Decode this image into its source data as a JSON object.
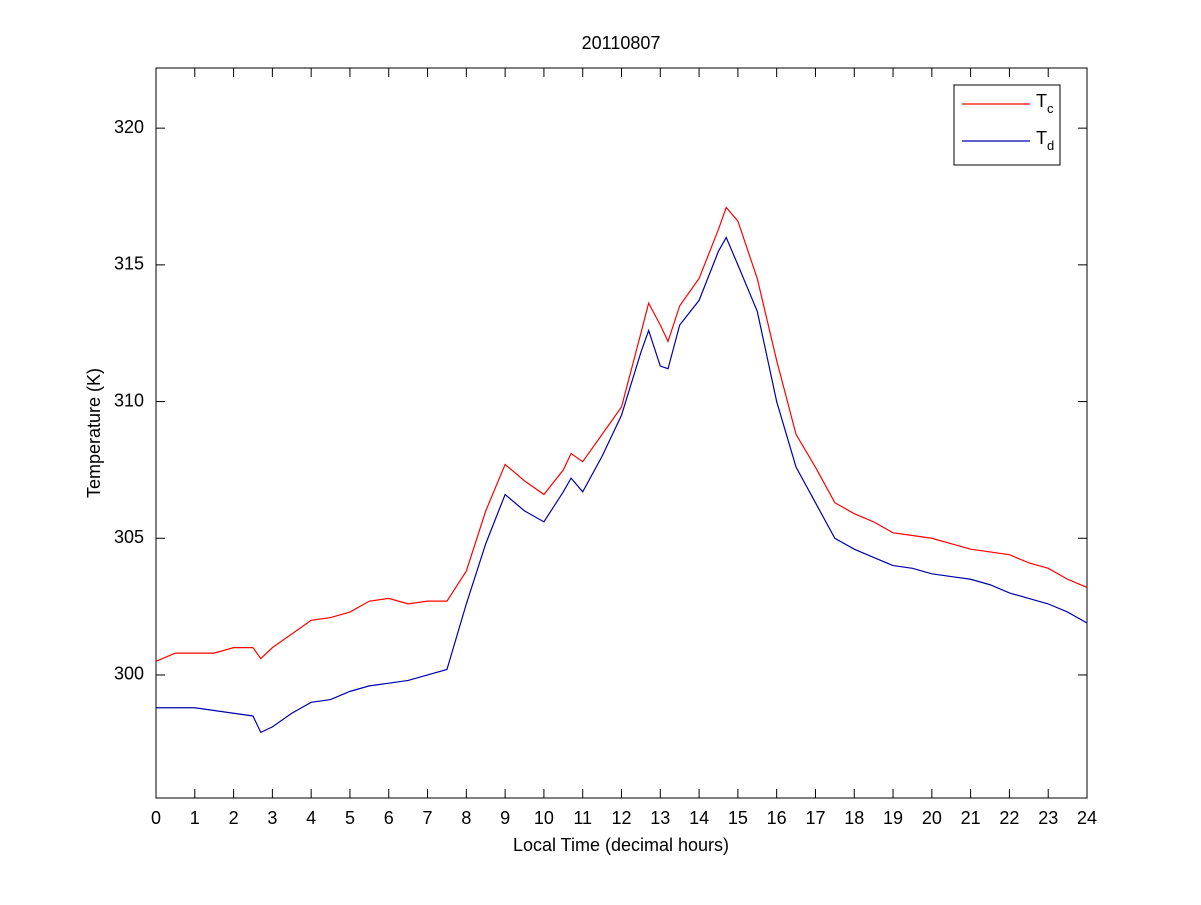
{
  "chart_data": {
    "type": "line",
    "title": "20110807",
    "x_label": "Local Time (decimal hours)",
    "y_label": "Temperature (K)",
    "x": [
      0,
      0.5,
      1,
      1.5,
      2,
      2.5,
      2.7,
      3,
      3.5,
      4,
      4.5,
      5,
      5.5,
      6,
      6.5,
      7,
      7.5,
      8,
      8.5,
      9,
      9.5,
      10,
      10.5,
      10.7,
      11,
      11.5,
      12,
      12.5,
      12.7,
      13,
      13.2,
      13.5,
      14,
      14.5,
      14.7,
      15,
      15.5,
      16,
      16.5,
      17,
      17.5,
      18,
      18.5,
      19,
      19.5,
      20,
      20.5,
      21,
      21.5,
      22,
      22.5,
      23,
      23.5,
      24
    ],
    "series": [
      {
        "name": "Tc",
        "color": "#ff0000",
        "values": [
          300.5,
          300.8,
          300.8,
          300.8,
          301.0,
          301.0,
          300.6,
          301.0,
          301.5,
          302.0,
          302.1,
          302.3,
          302.7,
          302.8,
          302.6,
          302.7,
          302.7,
          303.8,
          306.0,
          307.7,
          307.1,
          306.6,
          307.5,
          308.1,
          307.8,
          308.8,
          309.8,
          312.5,
          313.6,
          312.8,
          312.2,
          313.5,
          314.5,
          316.3,
          317.1,
          316.6,
          314.5,
          311.5,
          308.8,
          307.6,
          306.3,
          305.9,
          305.6,
          305.2,
          305.1,
          305.0,
          304.8,
          304.6,
          304.5,
          304.4,
          304.1,
          303.9,
          303.5,
          303.2
        ]
      },
      {
        "name": "Td",
        "color": "#0000aa",
        "values": [
          298.8,
          298.8,
          298.8,
          298.7,
          298.6,
          298.5,
          297.9,
          298.1,
          298.6,
          299.0,
          299.1,
          299.4,
          299.6,
          299.7,
          299.8,
          300.0,
          300.2,
          302.6,
          304.8,
          306.6,
          306.0,
          305.6,
          306.7,
          307.2,
          306.7,
          308.0,
          309.5,
          311.8,
          312.6,
          311.3,
          311.2,
          312.8,
          313.7,
          315.5,
          316.0,
          315.0,
          313.3,
          310.0,
          307.6,
          306.3,
          305.0,
          304.6,
          304.3,
          304.0,
          303.9,
          303.7,
          303.6,
          303.5,
          303.3,
          303.0,
          302.8,
          302.6,
          302.3,
          301.9
        ]
      }
    ],
    "xlim": [
      0,
      24
    ],
    "xticks": [
      0,
      1,
      2,
      3,
      4,
      5,
      6,
      7,
      8,
      9,
      10,
      11,
      12,
      13,
      14,
      15,
      16,
      17,
      18,
      19,
      20,
      21,
      22,
      23,
      24
    ],
    "ylim": [
      295.5,
      322.2
    ],
    "yticks": [
      300,
      305,
      310,
      315,
      320
    ],
    "grid": false,
    "legend": "upper right"
  }
}
